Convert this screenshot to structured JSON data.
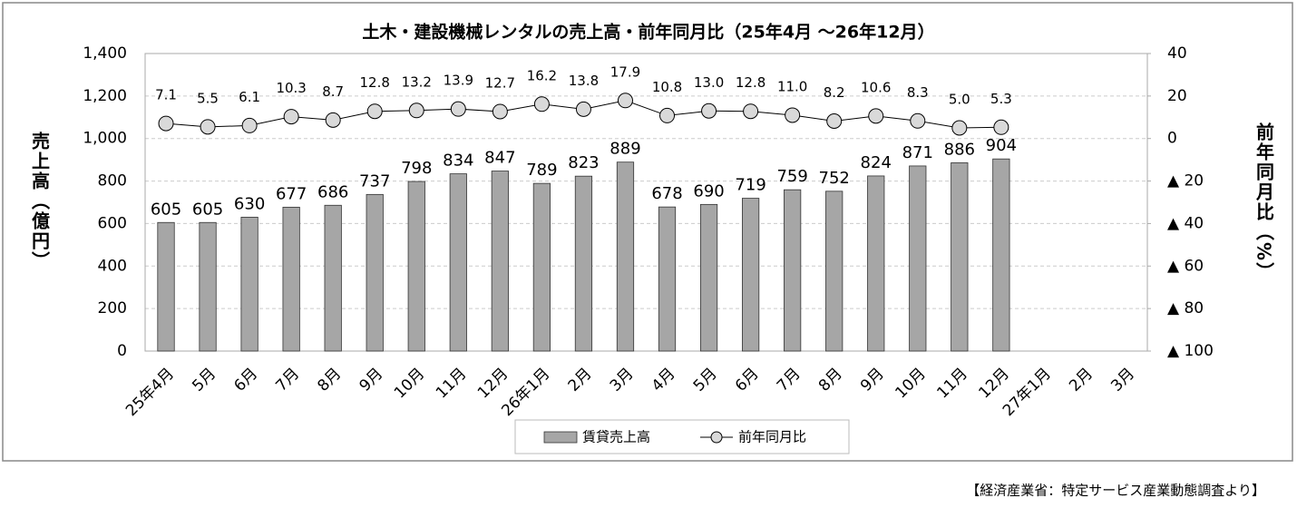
{
  "chart_data": {
    "type": "bar_line",
    "title": "土木・建設機械レンタルの売上高・前年同月比（25年4月 ～26年12月）",
    "y_label": "売上高（億円）",
    "y2_label": "前年同月比（%）",
    "source": "【経済産業省：特定サービス産業動態調査より】",
    "categories": [
      "25年4月",
      "5月",
      "6月",
      "7月",
      "8月",
      "9月",
      "10月",
      "11月",
      "12月",
      "26年1月",
      "2月",
      "3月",
      "4月",
      "5月",
      "6月",
      "7月",
      "8月",
      "9月",
      "10月",
      "11月",
      "12月",
      "27年1月",
      "2月",
      "3月"
    ],
    "series": [
      {
        "name": "賃貸売上高",
        "type": "bar",
        "color": "#a6a6a6",
        "values": [
          605,
          605,
          630,
          677,
          686,
          737,
          798,
          834,
          847,
          789,
          823,
          889,
          678,
          690,
          719,
          759,
          752,
          824,
          871,
          886,
          904,
          null,
          null,
          null
        ]
      },
      {
        "name": "前年同月比",
        "type": "line",
        "axis": "y2",
        "color": "#d9d9d9",
        "values": [
          7.1,
          5.5,
          6.1,
          10.3,
          8.7,
          12.8,
          13.2,
          13.9,
          12.7,
          16.2,
          13.8,
          17.9,
          10.8,
          13.0,
          12.8,
          11.0,
          8.2,
          10.6,
          8.3,
          5.0,
          5.3,
          null,
          null,
          null
        ],
        "value_labels": [
          "7.1",
          "5.5",
          "6.1",
          "10.3",
          "8.7",
          "12.8",
          "13.2",
          "13.9",
          "12.7",
          "16.2",
          "13.8",
          "17.9",
          "10.8",
          "13.0",
          "12.8",
          "11.0",
          "8.2",
          "10.6",
          "8.3",
          "5.0",
          "5.3",
          null,
          null,
          null
        ]
      }
    ],
    "ylim": [
      0,
      1400
    ],
    "yticks": [
      0,
      200,
      400,
      600,
      800,
      {
        "value": 1000,
        "label": "1,000"
      },
      {
        "value": 1200,
        "label": "1,200"
      },
      {
        "value": 1400,
        "label": "1,400"
      }
    ],
    "y2lim": [
      -100,
      40
    ],
    "y2ticks": [
      {
        "value": -100,
        "label": "▲ 100"
      },
      {
        "value": -80,
        "label": "▲ 80"
      },
      {
        "value": -60,
        "label": "▲ 60"
      },
      {
        "value": -40,
        "label": "▲ 40"
      },
      {
        "value": -20,
        "label": "▲ 20"
      },
      0,
      20,
      40
    ],
    "grid": true,
    "legend": "bottom"
  }
}
